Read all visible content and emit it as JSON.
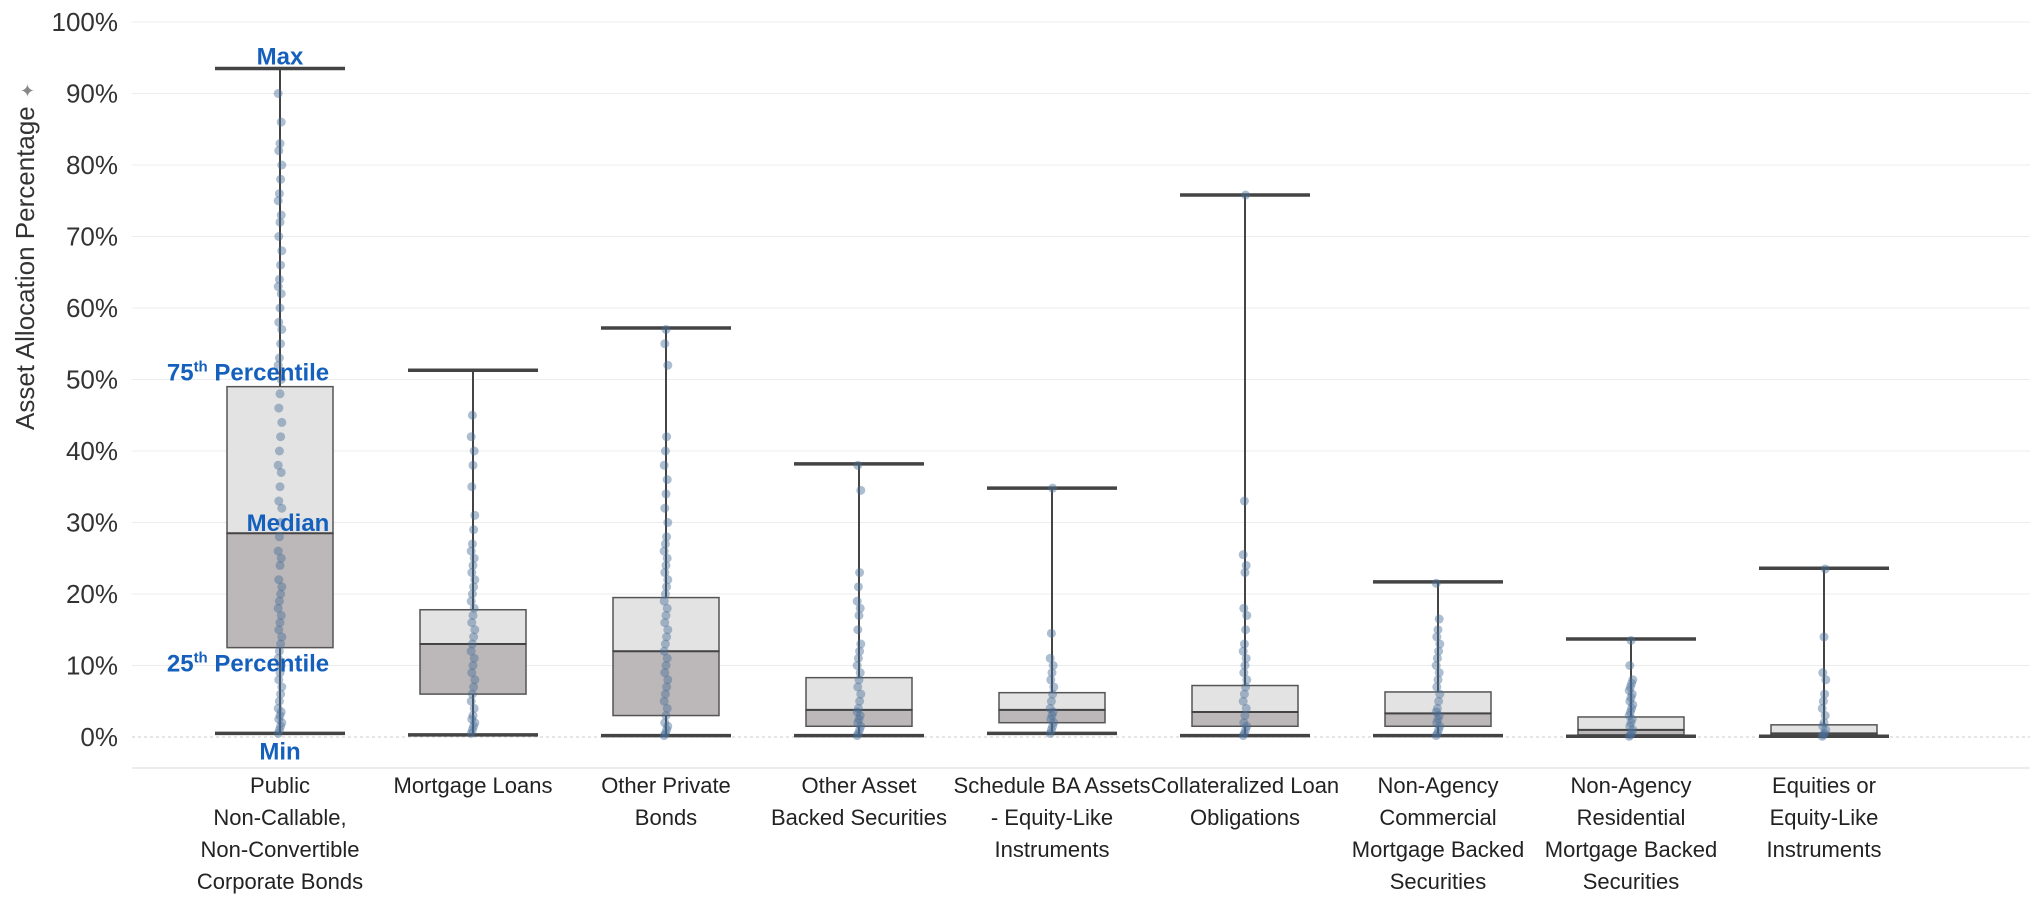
{
  "chart_data": {
    "type": "box",
    "ylabel": "Asset Allocation Percentage",
    "ylim": [
      0,
      100
    ],
    "y_ticks": [
      "0%",
      "10%",
      "20%",
      "30%",
      "40%",
      "50%",
      "60%",
      "70%",
      "80%",
      "90%",
      "100%"
    ],
    "y_tick_values": [
      0,
      10,
      20,
      30,
      40,
      50,
      60,
      70,
      80,
      90,
      100
    ],
    "grid": true,
    "colors": {
      "upper_box": "#e3e3e3",
      "lower_box": "#bcb7b9",
      "whisker": "#444444",
      "points": "#4a6f99",
      "annotation": "#1560bd",
      "grid": "#ececec",
      "zero_line": "#cccccc"
    },
    "categories": [
      {
        "label_lines": [
          "Public",
          "Non-Callable,",
          "Non-Convertible",
          "Corporate Bonds"
        ],
        "min": 0.5,
        "q1": 12.5,
        "median": 28.5,
        "q3": 49,
        "max": 93.5,
        "points": [
          0.5,
          1,
          1.5,
          2,
          2.5,
          3,
          3.5,
          4,
          5,
          6,
          7,
          8,
          9,
          10,
          11,
          12,
          13,
          14,
          15,
          16,
          17,
          18,
          19,
          20,
          21,
          22,
          24,
          25,
          26,
          28,
          30,
          32,
          33,
          35,
          37,
          38,
          40,
          42,
          44,
          46,
          48,
          50,
          52,
          53,
          55,
          57,
          58,
          60,
          62,
          63,
          64,
          66,
          68,
          70,
          72,
          73,
          75,
          76,
          78,
          80,
          82,
          83,
          86,
          90
        ]
      },
      {
        "label_lines": [
          "Mortgage Loans"
        ],
        "min": 0.3,
        "q1": 6,
        "median": 13,
        "q3": 17.8,
        "max": 51.3,
        "points": [
          0.5,
          1,
          1.5,
          2,
          2.5,
          3,
          4,
          5,
          6,
          7,
          8,
          9,
          10,
          11,
          12,
          13,
          14,
          15,
          16,
          17,
          18,
          19,
          20,
          21,
          22,
          23,
          24,
          25,
          26,
          27,
          29,
          31,
          35,
          38,
          40,
          42,
          45
        ]
      },
      {
        "label_lines": [
          "Other Private",
          "Bonds"
        ],
        "min": 0.2,
        "q1": 3,
        "median": 12,
        "q3": 19.5,
        "max": 57.2,
        "points": [
          0.2,
          0.5,
          1,
          1.5,
          2,
          3,
          4,
          5,
          6,
          7,
          8,
          9,
          10,
          11,
          12,
          13,
          14,
          15,
          16,
          17,
          18,
          19,
          20,
          21,
          22,
          23,
          24,
          25,
          26,
          27,
          28,
          30,
          32,
          34,
          36,
          38,
          40,
          42,
          52,
          55,
          57
        ]
      },
      {
        "label_lines": [
          "Other Asset",
          "Backed Securities"
        ],
        "min": 0.2,
        "q1": 1.5,
        "median": 3.8,
        "q3": 8.3,
        "max": 38.2,
        "points": [
          0.2,
          0.5,
          1,
          1.5,
          2,
          2.5,
          3,
          3.5,
          4,
          5,
          6,
          7,
          8,
          9,
          10,
          11,
          12,
          13,
          15,
          17,
          18,
          19,
          21,
          23,
          34.5,
          38
        ]
      },
      {
        "label_lines": [
          "Schedule BA Assets",
          "- Equity-Like",
          "Instruments"
        ],
        "min": 0.5,
        "q1": 2,
        "median": 3.8,
        "q3": 6.2,
        "max": 34.8,
        "points": [
          0.5,
          1,
          1.5,
          2,
          2.5,
          3,
          3.5,
          4,
          5,
          6,
          7,
          8,
          9,
          10,
          11,
          14.5,
          34.8
        ]
      },
      {
        "label_lines": [
          "Collateralized Loan",
          "Obligations"
        ],
        "min": 0.2,
        "q1": 1.5,
        "median": 3.5,
        "q3": 7.2,
        "max": 75.8,
        "points": [
          0.2,
          0.5,
          1,
          1.5,
          2,
          3,
          4,
          5,
          6,
          7,
          8,
          9,
          10,
          11,
          12,
          13,
          15,
          17,
          18,
          23,
          24,
          25.5,
          33,
          75.8
        ]
      },
      {
        "label_lines": [
          "Non-Agency",
          "Commercial",
          "Mortgage Backed",
          "Securities"
        ],
        "min": 0.2,
        "q1": 1.5,
        "median": 3.3,
        "q3": 6.3,
        "max": 21.7,
        "points": [
          0.2,
          0.5,
          1,
          1.5,
          2,
          2.5,
          3,
          3.5,
          4,
          5,
          6,
          7,
          8,
          9,
          10,
          11,
          12,
          13,
          14,
          15,
          16.5,
          21.5
        ]
      },
      {
        "label_lines": [
          "Non-Agency",
          "Residential",
          "Mortgage Backed",
          "Securities"
        ],
        "min": 0.1,
        "q1": 0.3,
        "median": 1,
        "q3": 2.8,
        "max": 13.7,
        "points": [
          0.1,
          0.3,
          0.5,
          1,
          1.5,
          2,
          2.5,
          3,
          3.5,
          4,
          4.5,
          5,
          5.5,
          6,
          6.5,
          7,
          7.5,
          8,
          10,
          13.5
        ]
      },
      {
        "label_lines": [
          "Equities or",
          "Equity-Like",
          "Instruments"
        ],
        "min": 0.1,
        "q1": 0.2,
        "median": 0.5,
        "q3": 1.7,
        "max": 23.6,
        "points": [
          0.1,
          0.3,
          0.5,
          1,
          1.5,
          2,
          3,
          4,
          5,
          6,
          8,
          9,
          14,
          23.5
        ]
      }
    ],
    "annotations": {
      "max": "Max",
      "p75": "75",
      "p75_sup": "th",
      "p75_rest": " Percentile",
      "median": "Median",
      "p25": "25",
      "p25_sup": "th",
      "p25_rest": " Percentile",
      "min": "Min"
    },
    "sort_icon": "sort-star-icon"
  }
}
